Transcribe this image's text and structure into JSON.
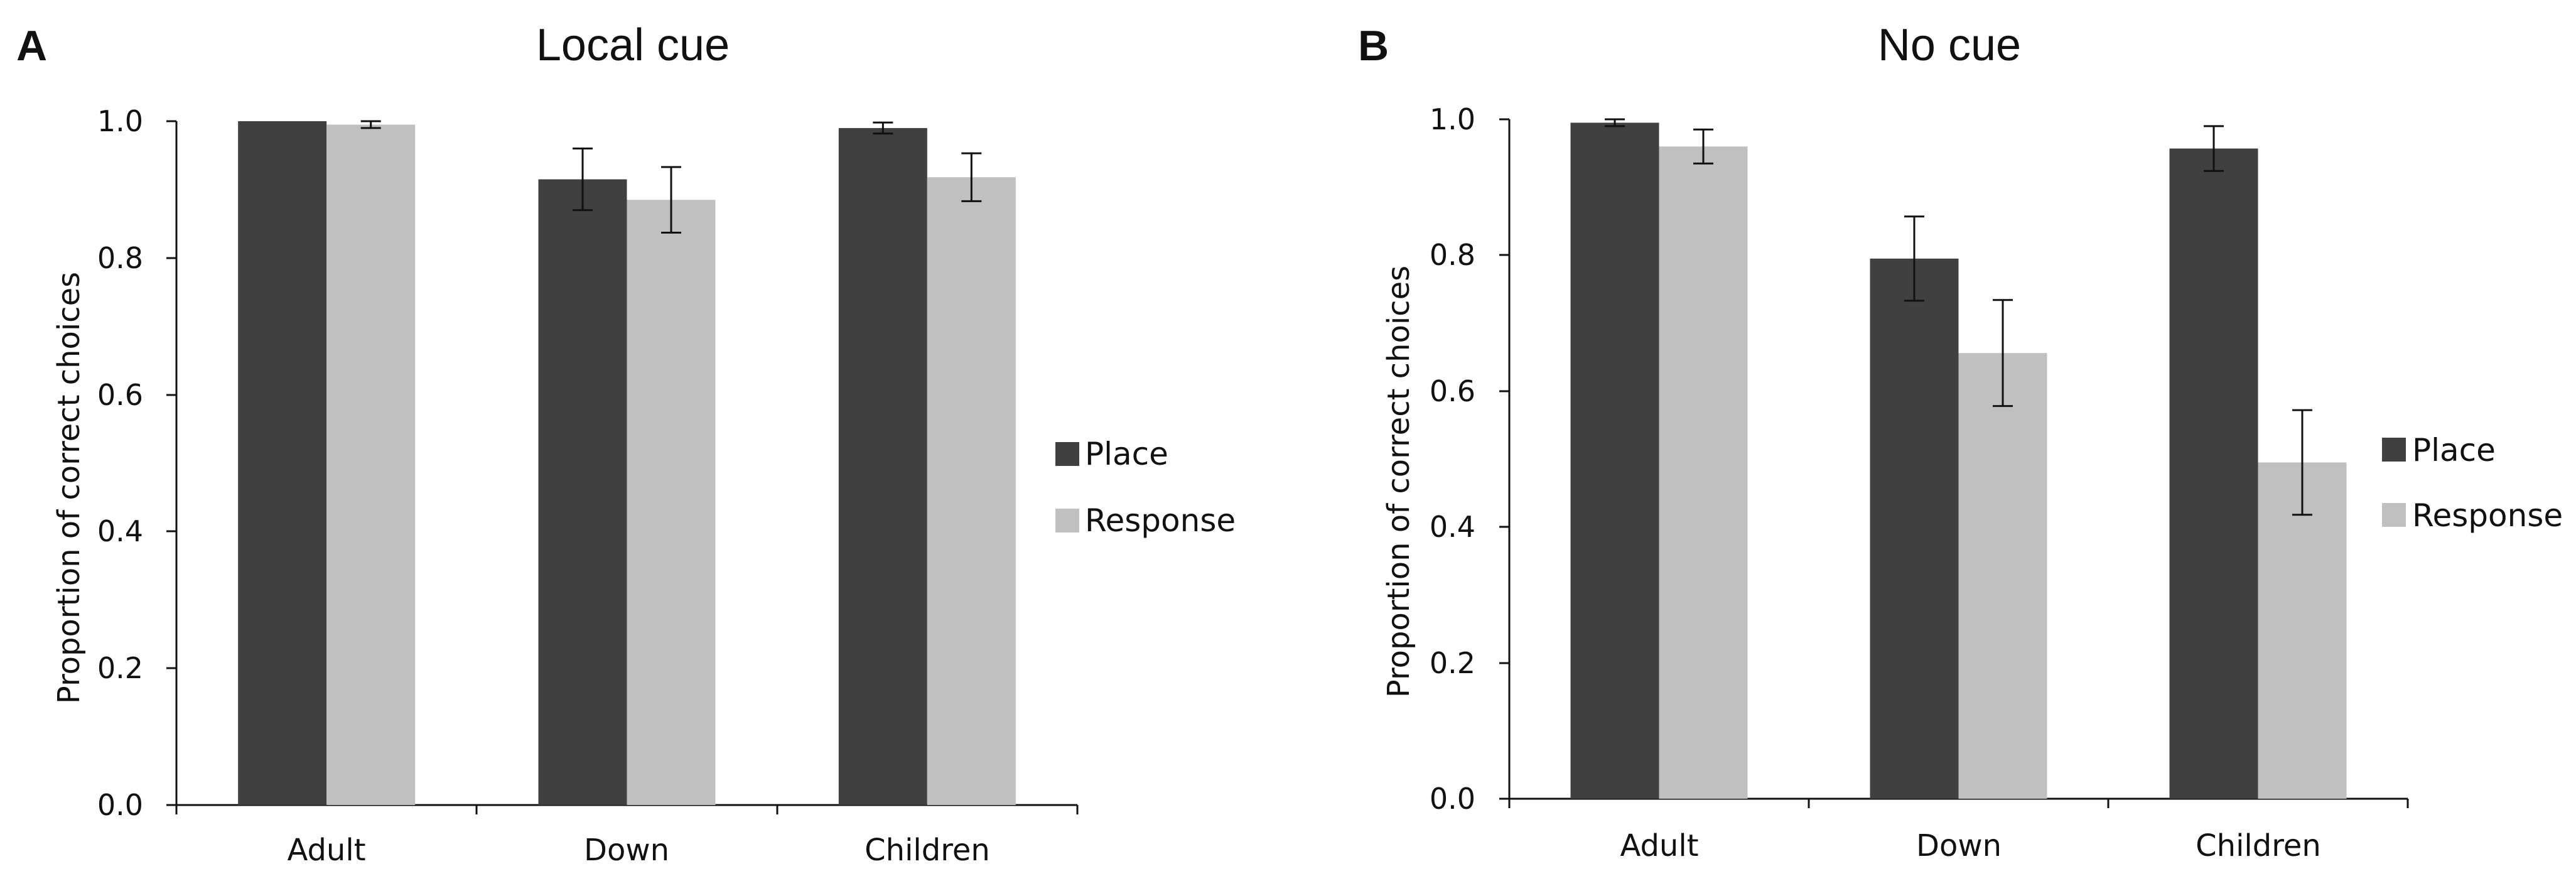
{
  "chart_data": [
    {
      "type": "bar",
      "panel": "A",
      "title": "Local cue",
      "xlabel": "",
      "ylabel": "Proportion of correct choices",
      "ylim": [
        0,
        1
      ],
      "yticks": [
        "0.0",
        "0.2",
        "0.4",
        "0.6",
        "0.8",
        "1.0"
      ],
      "categories": [
        "Adult",
        "Down",
        "Children"
      ],
      "series": [
        {
          "name": "Place",
          "color": "#404040",
          "values": [
            1.0,
            0.915,
            0.99
          ],
          "errors": [
            0.0,
            0.045,
            0.008
          ]
        },
        {
          "name": "Response",
          "color": "#c0c0c0",
          "values": [
            0.995,
            0.885,
            0.918
          ],
          "errors": [
            0.005,
            0.048,
            0.035
          ]
        }
      ],
      "legend": "right"
    },
    {
      "type": "bar",
      "panel": "B",
      "title": "No cue",
      "xlabel": "",
      "ylabel": "Proportion of correct choices",
      "ylim": [
        0,
        1
      ],
      "yticks": [
        "0.0",
        "0.2",
        "0.4",
        "0.6",
        "0.8",
        "1.0"
      ],
      "categories": [
        "Adult",
        "Down",
        "Children"
      ],
      "series": [
        {
          "name": "Place",
          "color": "#404040",
          "values": [
            0.995,
            0.795,
            0.957
          ],
          "errors": [
            0.005,
            0.062,
            0.033
          ]
        },
        {
          "name": "Response",
          "color": "#c0c0c0",
          "values": [
            0.96,
            0.656,
            0.495
          ],
          "errors": [
            0.025,
            0.078,
            0.077
          ]
        }
      ],
      "legend": "right"
    }
  ]
}
